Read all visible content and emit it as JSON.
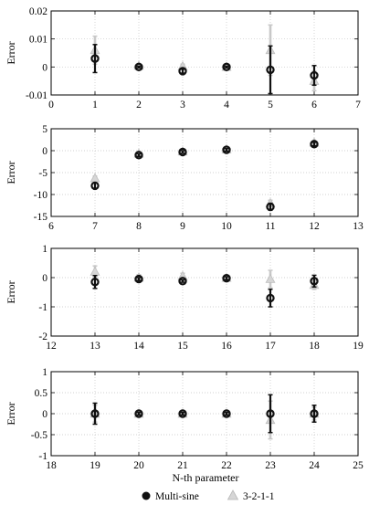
{
  "figure": {
    "xlabel": "N-th parameter",
    "legend": [
      {
        "name": "Multi-sine",
        "marker": "circle",
        "color": "#111111"
      },
      {
        "name": "3-2-1-1",
        "marker": "triangle",
        "color": "#c8c8c8"
      }
    ]
  },
  "chart_data": [
    {
      "type": "scatter",
      "ylabel": "Error",
      "xlim": [
        0,
        7
      ],
      "ylim": [
        -0.01,
        0.02
      ],
      "xticks": [
        0,
        1,
        2,
        3,
        4,
        5,
        6,
        7
      ],
      "yticks": [
        -0.01,
        0,
        0.01,
        0.02
      ],
      "ytick_labels": [
        "-0.01",
        "0",
        "0.01",
        "0.02"
      ],
      "grid": true,
      "series": [
        {
          "name": "Multi-sine",
          "x": [
            1,
            2,
            3,
            4,
            5,
            6
          ],
          "y": [
            0.003,
            0.0,
            -0.0015,
            0.0,
            -0.001,
            -0.003
          ],
          "err": [
            0.005,
            0.0003,
            0.0007,
            0.0003,
            0.0085,
            0.0035
          ]
        },
        {
          "name": "3-2-1-1",
          "x": [
            1,
            2,
            3,
            4,
            5,
            6
          ],
          "y": [
            0.006,
            0.0004,
            0.0002,
            0.0,
            0.006,
            -0.005
          ],
          "err": [
            0.005,
            0.0005,
            0.0008,
            0.0005,
            0.009,
            0.0035
          ]
        }
      ]
    },
    {
      "type": "scatter",
      "ylabel": "Error",
      "xlim": [
        6,
        13
      ],
      "ylim": [
        -15,
        5
      ],
      "xticks": [
        6,
        7,
        8,
        9,
        10,
        11,
        12,
        13
      ],
      "yticks": [
        -15,
        -10,
        -5,
        0,
        5
      ],
      "ytick_labels": [
        "-15",
        "-10",
        "-5",
        "0",
        "5"
      ],
      "grid": true,
      "series": [
        {
          "name": "Multi-sine",
          "x": [
            7,
            8,
            9,
            10,
            11,
            12
          ],
          "y": [
            -8.0,
            -1.0,
            -0.3,
            0.2,
            -12.8,
            1.5
          ],
          "err": [
            0.6,
            0.3,
            0.3,
            0.3,
            0.8,
            0.4
          ]
        },
        {
          "name": "3-2-1-1",
          "x": [
            7,
            8,
            9,
            10,
            11,
            12
          ],
          "y": [
            -6.3,
            -0.7,
            -0.2,
            0.3,
            -12.0,
            1.8
          ],
          "err": [
            0.5,
            0.3,
            0.3,
            0.3,
            0.7,
            0.4
          ]
        }
      ]
    },
    {
      "type": "scatter",
      "ylabel": "Error",
      "xlim": [
        12,
        19
      ],
      "ylim": [
        -2,
        1
      ],
      "xticks": [
        12,
        13,
        14,
        15,
        16,
        17,
        18,
        19
      ],
      "yticks": [
        -2,
        -1,
        0,
        1
      ],
      "ytick_labels": [
        "-2",
        "-1",
        "0",
        "1"
      ],
      "grid": true,
      "series": [
        {
          "name": "Multi-sine",
          "x": [
            13,
            14,
            15,
            16,
            17,
            18
          ],
          "y": [
            -0.15,
            -0.05,
            -0.12,
            -0.02,
            -0.7,
            -0.12
          ],
          "err": [
            0.22,
            0.05,
            0.04,
            0.05,
            0.3,
            0.2
          ]
        },
        {
          "name": "3-2-1-1",
          "x": [
            13,
            14,
            15,
            16,
            17,
            18
          ],
          "y": [
            0.2,
            0.0,
            0.05,
            -0.01,
            -0.05,
            -0.25
          ],
          "err": [
            0.2,
            0.1,
            0.1,
            0.1,
            0.3,
            0.15
          ]
        }
      ]
    },
    {
      "type": "scatter",
      "ylabel": "Error",
      "xlim": [
        18,
        25
      ],
      "ylim": [
        -1,
        1
      ],
      "xticks": [
        18,
        19,
        20,
        21,
        22,
        23,
        24,
        25
      ],
      "yticks": [
        -1,
        -0.5,
        0,
        0.5,
        1
      ],
      "ytick_labels": [
        "-1",
        "-0.5",
        "0",
        "0.5",
        "1"
      ],
      "grid": true,
      "series": [
        {
          "name": "Multi-sine",
          "x": [
            19,
            20,
            21,
            22,
            23,
            24
          ],
          "y": [
            0.0,
            0.0,
            0.0,
            0.0,
            0.0,
            0.0
          ],
          "err": [
            0.25,
            0.03,
            0.03,
            0.03,
            0.45,
            0.2
          ]
        },
        {
          "name": "3-2-1-1",
          "x": [
            19,
            20,
            21,
            22,
            23,
            24
          ],
          "y": [
            0.0,
            0.0,
            0.0,
            0.0,
            -0.15,
            0.0
          ],
          "err": [
            0.2,
            0.05,
            0.05,
            0.05,
            0.45,
            0.15
          ]
        }
      ]
    }
  ]
}
